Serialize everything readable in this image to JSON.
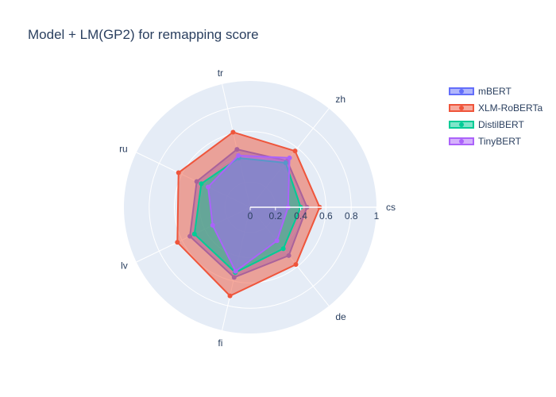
{
  "chart_data": {
    "type": "radar",
    "title": "Model + LM(GP2) for remapping score",
    "categories": [
      "cs",
      "de",
      "fi",
      "lv",
      "ru",
      "tr",
      "zh"
    ],
    "radial_ticks": [
      "0",
      "0.2",
      "0.4",
      "0.6",
      "0.8",
      "1"
    ],
    "radial_range": [
      0,
      1
    ],
    "legend_position": "top-right",
    "series": [
      {
        "name": "mBERT",
        "color": "#636efa",
        "values": [
          0.45,
          0.49,
          0.57,
          0.53,
          0.47,
          0.47,
          0.47
        ]
      },
      {
        "name": "XLM-RoBERTa",
        "color": "#ef553b",
        "values": [
          0.55,
          0.58,
          0.72,
          0.64,
          0.63,
          0.61,
          0.57
        ]
      },
      {
        "name": "DistilBERT",
        "color": "#00cc96",
        "values": [
          0.4,
          0.42,
          0.53,
          0.49,
          0.43,
          0.4,
          0.45
        ]
      },
      {
        "name": "TinyBERT",
        "color": "#ab63fa",
        "values": [
          0.3,
          0.34,
          0.52,
          0.33,
          0.37,
          0.42,
          0.5
        ]
      }
    ]
  }
}
